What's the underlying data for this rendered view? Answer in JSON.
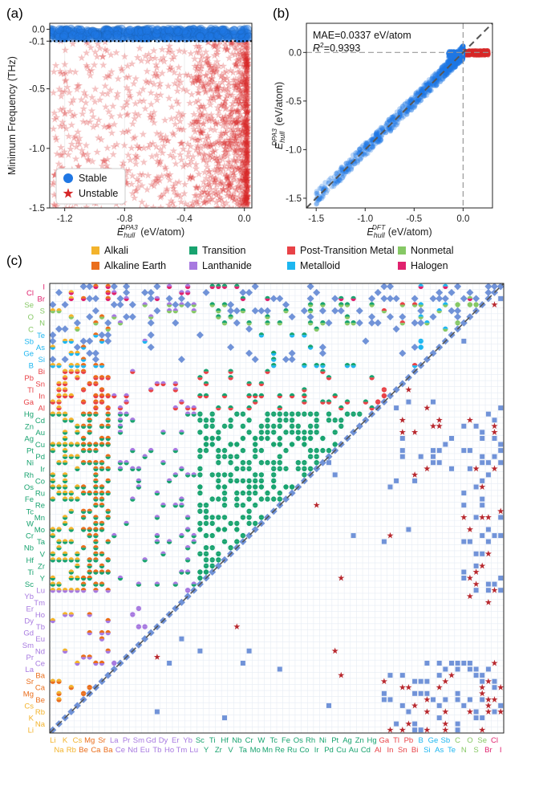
{
  "colors": {
    "stable": "#1f77e4",
    "unstable": "#d62728",
    "Alkali": "#f3b32c",
    "Alkaline Earth": "#ea6e1c",
    "Transition": "#18a36f",
    "Lanthanide": "#a779e0",
    "Post-Transition Metal": "#e84247",
    "Nonmetal": "#86c865",
    "Metalloid": "#1db6f0",
    "Halogen": "#e0226e"
  },
  "chart_data": [
    {
      "panel": "(a)",
      "type": "scatter",
      "xlabel_main": "E",
      "xlabel_sub": "hull",
      "xlabel_sup": "DPA3",
      "xlabel_rest": " (eV/atom)",
      "ylabel": "Minimum Frequency (THz)",
      "xlim": [
        -1.3,
        0.05
      ],
      "ylim": [
        -1.5,
        0.05
      ],
      "xticks": [
        "-1.2",
        "-0.8",
        "-0.4",
        "0.0"
      ],
      "yticks": [
        "0.0",
        "-0.1",
        "-0.5",
        "-1.0",
        "-1.5"
      ],
      "threshold": -0.1,
      "legend": [
        "Stable",
        "Unstable"
      ],
      "series": [
        {
          "name": "Stable",
          "marker": "circle",
          "y_range": [
            -0.08,
            0.0
          ],
          "x_range": [
            -1.3,
            0.03
          ]
        },
        {
          "name": "Unstable",
          "marker": "star",
          "y_range": [
            -1.5,
            -0.1
          ],
          "x_range": [
            -1.3,
            0.03
          ]
        }
      ]
    },
    {
      "panel": "(b)",
      "type": "scatter",
      "xlabel_main": "E",
      "xlabel_sub": "hull",
      "xlabel_sup": "DFT",
      "xlabel_rest": " (eV/atom)",
      "ylabel_main": "E",
      "ylabel_sub": "hull",
      "ylabel_sup": "DPA3",
      "ylabel_rest": " (eV/atom)",
      "xlim": [
        -1.6,
        0.3
      ],
      "ylim": [
        -1.6,
        0.3
      ],
      "xticks": [
        "-1.5",
        "-1.0",
        "-0.5",
        "0.0"
      ],
      "yticks": [
        "0.0",
        "-0.5",
        "-1.0",
        "-1.5"
      ],
      "annotation_mae": "MAE=0.0337 eV/atom",
      "annotation_r2_prefix": "R",
      "annotation_r2_sup": "2",
      "annotation_r2_value": "=0.9393"
    },
    {
      "panel": "(c)",
      "type": "heatmap",
      "legend": [
        "Alkali",
        "Alkaline Earth",
        "Transition",
        "Lanthanide",
        "Post-Transition Metal",
        "Metalloid",
        "Nonmetal",
        "Halogen"
      ],
      "elements": [
        {
          "s": "Li",
          "g": "Alkali"
        },
        {
          "s": "Na",
          "g": "Alkali"
        },
        {
          "s": "K",
          "g": "Alkali"
        },
        {
          "s": "Rb",
          "g": "Alkali"
        },
        {
          "s": "Cs",
          "g": "Alkali"
        },
        {
          "s": "Be",
          "g": "Alkaline Earth"
        },
        {
          "s": "Mg",
          "g": "Alkaline Earth"
        },
        {
          "s": "Ca",
          "g": "Alkaline Earth"
        },
        {
          "s": "Sr",
          "g": "Alkaline Earth"
        },
        {
          "s": "Ba",
          "g": "Alkaline Earth"
        },
        {
          "s": "La",
          "g": "Lanthanide"
        },
        {
          "s": "Ce",
          "g": "Lanthanide"
        },
        {
          "s": "Pr",
          "g": "Lanthanide"
        },
        {
          "s": "Nd",
          "g": "Lanthanide"
        },
        {
          "s": "Sm",
          "g": "Lanthanide"
        },
        {
          "s": "Eu",
          "g": "Lanthanide"
        },
        {
          "s": "Gd",
          "g": "Lanthanide"
        },
        {
          "s": "Tb",
          "g": "Lanthanide"
        },
        {
          "s": "Dy",
          "g": "Lanthanide"
        },
        {
          "s": "Ho",
          "g": "Lanthanide"
        },
        {
          "s": "Er",
          "g": "Lanthanide"
        },
        {
          "s": "Tm",
          "g": "Lanthanide"
        },
        {
          "s": "Yb",
          "g": "Lanthanide"
        },
        {
          "s": "Lu",
          "g": "Lanthanide"
        },
        {
          "s": "Sc",
          "g": "Transition"
        },
        {
          "s": "Y",
          "g": "Transition"
        },
        {
          "s": "Ti",
          "g": "Transition"
        },
        {
          "s": "Zr",
          "g": "Transition"
        },
        {
          "s": "Hf",
          "g": "Transition"
        },
        {
          "s": "V",
          "g": "Transition"
        },
        {
          "s": "Nb",
          "g": "Transition"
        },
        {
          "s": "Ta",
          "g": "Transition"
        },
        {
          "s": "Cr",
          "g": "Transition"
        },
        {
          "s": "Mo",
          "g": "Transition"
        },
        {
          "s": "W",
          "g": "Transition"
        },
        {
          "s": "Mn",
          "g": "Transition"
        },
        {
          "s": "Tc",
          "g": "Transition"
        },
        {
          "s": "Re",
          "g": "Transition"
        },
        {
          "s": "Fe",
          "g": "Transition"
        },
        {
          "s": "Ru",
          "g": "Transition"
        },
        {
          "s": "Os",
          "g": "Transition"
        },
        {
          "s": "Co",
          "g": "Transition"
        },
        {
          "s": "Rh",
          "g": "Transition"
        },
        {
          "s": "Ir",
          "g": "Transition"
        },
        {
          "s": "Ni",
          "g": "Transition"
        },
        {
          "s": "Pd",
          "g": "Transition"
        },
        {
          "s": "Pt",
          "g": "Transition"
        },
        {
          "s": "Cu",
          "g": "Transition"
        },
        {
          "s": "Ag",
          "g": "Transition"
        },
        {
          "s": "Au",
          "g": "Transition"
        },
        {
          "s": "Zn",
          "g": "Transition"
        },
        {
          "s": "Cd",
          "g": "Transition"
        },
        {
          "s": "Hg",
          "g": "Transition"
        },
        {
          "s": "Al",
          "g": "Post-Transition Metal"
        },
        {
          "s": "Ga",
          "g": "Post-Transition Metal"
        },
        {
          "s": "In",
          "g": "Post-Transition Metal"
        },
        {
          "s": "Tl",
          "g": "Post-Transition Metal"
        },
        {
          "s": "Sn",
          "g": "Post-Transition Metal"
        },
        {
          "s": "Pb",
          "g": "Post-Transition Metal"
        },
        {
          "s": "Bi",
          "g": "Post-Transition Metal"
        },
        {
          "s": "B",
          "g": "Metalloid"
        },
        {
          "s": "Si",
          "g": "Metalloid"
        },
        {
          "s": "Ge",
          "g": "Metalloid"
        },
        {
          "s": "As",
          "g": "Metalloid"
        },
        {
          "s": "Sb",
          "g": "Metalloid"
        },
        {
          "s": "Te",
          "g": "Metalloid"
        },
        {
          "s": "C",
          "g": "Nonmetal"
        },
        {
          "s": "N",
          "g": "Nonmetal"
        },
        {
          "s": "O",
          "g": "Nonmetal"
        },
        {
          "s": "S",
          "g": "Nonmetal"
        },
        {
          "s": "Se",
          "g": "Nonmetal"
        },
        {
          "s": "Br",
          "g": "Halogen"
        },
        {
          "s": "Cl",
          "g": "Halogen"
        },
        {
          "s": "I",
          "g": "Halogen"
        }
      ]
    }
  ]
}
